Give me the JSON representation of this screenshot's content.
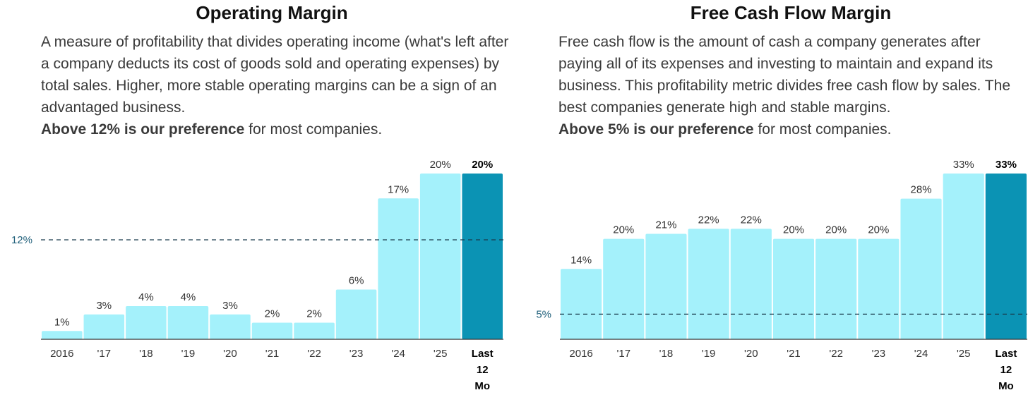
{
  "panels": [
    {
      "title": "Operating Margin",
      "description": "A measure of profitability that divides operating income (what's left after a company deducts its cost of goods sold and operating expenses) by total sales. Higher, more stable operating margins can be a sign of an advantaged business.",
      "preference_bold": "Above 12% is our preference",
      "preference_rest": " for most companies."
    },
    {
      "title": "Free Cash Flow Margin",
      "description": "Free cash flow is the amount of cash a company generates after paying all of its expenses and investing to maintain and expand its business. This profitability metric divides free cash flow by sales. The best companies generate high and stable margins.",
      "preference_bold": "Above 5% is our preference",
      "preference_rest": " for most companies."
    }
  ],
  "colors": {
    "bar": "#a4f1fb",
    "bar_highlight": "#0b93b4",
    "reference_line": "#1a3c4d",
    "reference_label": "#1f5f7a",
    "axis": "#333333"
  },
  "chart_data": [
    {
      "type": "bar",
      "title": "Operating Margin",
      "categories": [
        "2016",
        "'17",
        "'18",
        "'19",
        "'20",
        "'21",
        "'22",
        "'23",
        "'24",
        "'25",
        "Last 12 Mo"
      ],
      "values": [
        1,
        3,
        4,
        4,
        3,
        2,
        2,
        6,
        17,
        20,
        20
      ],
      "value_labels": [
        "1%",
        "3%",
        "4%",
        "4%",
        "3%",
        "2%",
        "2%",
        "6%",
        "17%",
        "20%",
        "20%"
      ],
      "highlight_last": true,
      "reference_line": {
        "value": 12,
        "label": "12%"
      },
      "ylim": [
        0,
        20
      ]
    },
    {
      "type": "bar",
      "title": "Free Cash Flow Margin",
      "categories": [
        "2016",
        "'17",
        "'18",
        "'19",
        "'20",
        "'21",
        "'22",
        "'23",
        "'24",
        "'25",
        "Last 12 Mo"
      ],
      "values": [
        14,
        20,
        21,
        22,
        22,
        20,
        20,
        20,
        28,
        33,
        33
      ],
      "value_labels": [
        "14%",
        "20%",
        "21%",
        "22%",
        "22%",
        "20%",
        "20%",
        "20%",
        "28%",
        "33%",
        "33%"
      ],
      "highlight_last": true,
      "reference_line": {
        "value": 5,
        "label": "5%"
      },
      "ylim": [
        0,
        33
      ]
    }
  ]
}
